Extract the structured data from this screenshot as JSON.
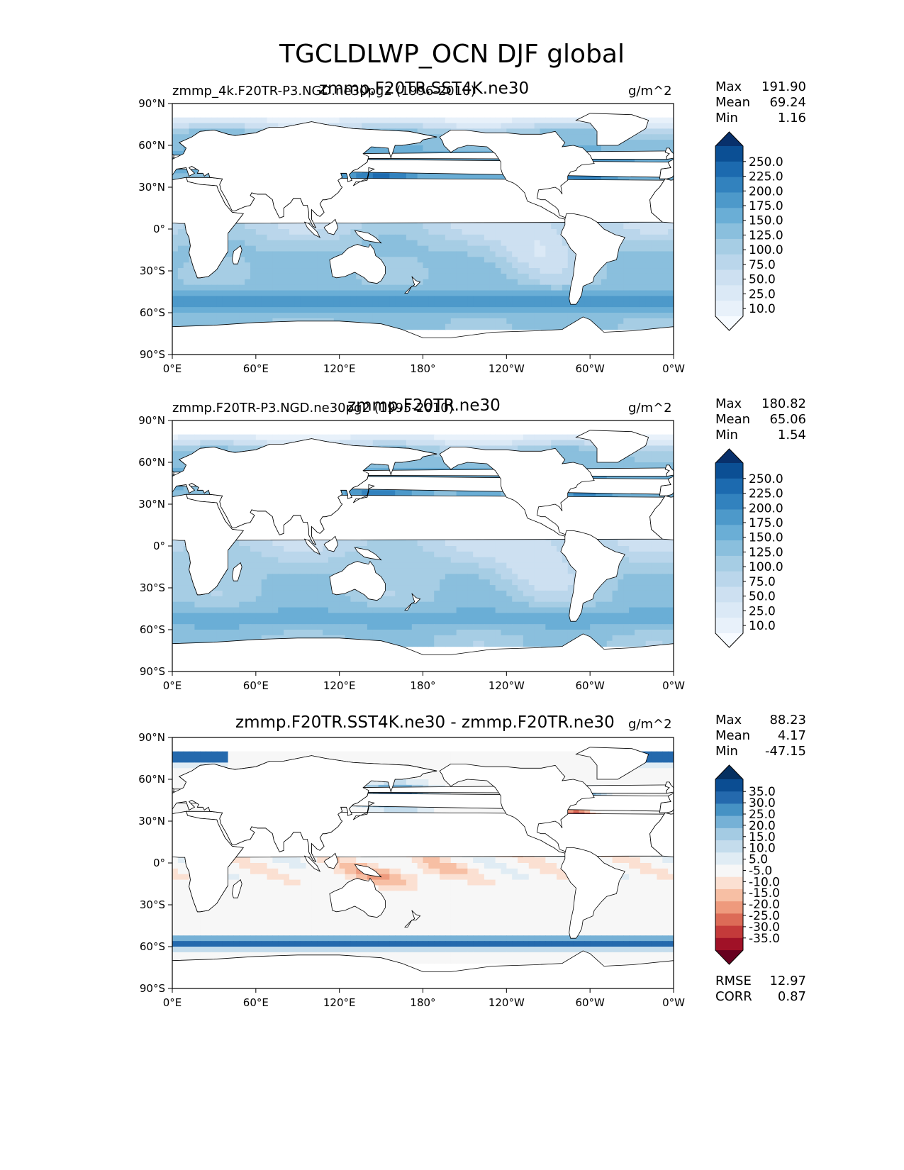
{
  "figure_title": "TGCLDLWP_OCN DJF global",
  "units": "g/m^2",
  "lon_ticks": [
    "0°E",
    "60°E",
    "120°E",
    "180°",
    "120°W",
    "60°W",
    "0°W"
  ],
  "lat_ticks": [
    "90°N",
    "60°N",
    "30°N",
    "0°",
    "30°S",
    "60°S",
    "90°S"
  ],
  "stat_labels": {
    "max": "Max",
    "mean": "Mean",
    "min": "Min",
    "rmse": "RMSE",
    "corr": "CORR"
  },
  "colors": {
    "land": "#ffffff",
    "blues": [
      "#f7fbff",
      "#e8f1fa",
      "#dbe9f6",
      "#cde0f1",
      "#bad6eb",
      "#a6cde4",
      "#8abfdd",
      "#6aaed6",
      "#4d99ca",
      "#3282be",
      "#1c6aaf",
      "#0b4f94",
      "#08306b"
    ],
    "diverging": [
      "#67001f",
      "#a01127",
      "#c43a3a",
      "#dc6b57",
      "#ee9a7d",
      "#f7bfa4",
      "#fbe0d2",
      "#f7f7f7",
      "#e0ecf4",
      "#c4dcec",
      "#a4cbe3",
      "#76b1d6",
      "#4692c4",
      "#2469ad",
      "#0b4d92",
      "#053061"
    ]
  },
  "chart_data": [
    {
      "type": "map",
      "title": "zmmp.F20TR.SST4K.ne30",
      "subtitle": "zmmp_4k.F20TR-P3.NGD.ne30pg2 (1996-2010)",
      "units": "g/m^2",
      "stats": {
        "max": "191.90",
        "mean": "69.24",
        "min": "1.16"
      },
      "colorbar": {
        "labels": [
          "250.0",
          "225.0",
          "200.0",
          "175.0",
          "150.0",
          "125.0",
          "100.0",
          "75.0",
          "50.0",
          "25.0",
          "10.0"
        ],
        "extend": "both"
      },
      "field": {
        "base": 78,
        "tropical_low": 22,
        "storm_track_south": 60,
        "storm_track_north": 45,
        "kuroshio": 165,
        "gulf_stream": 150,
        "stratocumulus_east_pac": 40
      }
    },
    {
      "type": "map",
      "title": "zmmp.F20TR.ne30",
      "subtitle": "zmmp.F20TR-P3.NGD.ne30pg2 (1995-2010)",
      "units": "g/m^2",
      "stats": {
        "max": "180.82",
        "mean": "65.06",
        "min": "1.54"
      },
      "colorbar": {
        "labels": [
          "250.0",
          "225.0",
          "200.0",
          "175.0",
          "150.0",
          "125.0",
          "100.0",
          "75.0",
          "50.0",
          "25.0",
          "10.0"
        ],
        "extend": "both"
      },
      "field": {
        "base": 74,
        "tropical_low": 20,
        "storm_track_south": 40,
        "storm_track_north": 40,
        "kuroshio": 150,
        "gulf_stream": 140,
        "stratocumulus_east_pac": 35
      }
    },
    {
      "type": "map",
      "title": "zmmp.F20TR.SST4K.ne30 - zmmp.F20TR.ne30",
      "subtitle": "",
      "units": "g/m^2",
      "stats": {
        "max": "88.23",
        "mean": "4.17",
        "min": "-47.15",
        "rmse": "12.97",
        "corr": "0.87"
      },
      "colorbar": {
        "labels": [
          "35.0",
          "30.0",
          "25.0",
          "20.0",
          "15.0",
          "10.0",
          "5.0",
          "-5.0",
          "-10.0",
          "-15.0",
          "-20.0",
          "-25.0",
          "-30.0",
          "-35.0"
        ],
        "extend": "both"
      },
      "field": {
        "southern_ocean": 32,
        "north_pacific_high": 38,
        "kuroshio_shift": -42,
        "gulf_stream_shift": -45,
        "tropical_warm_pool": -12,
        "arctic": 40
      }
    }
  ]
}
